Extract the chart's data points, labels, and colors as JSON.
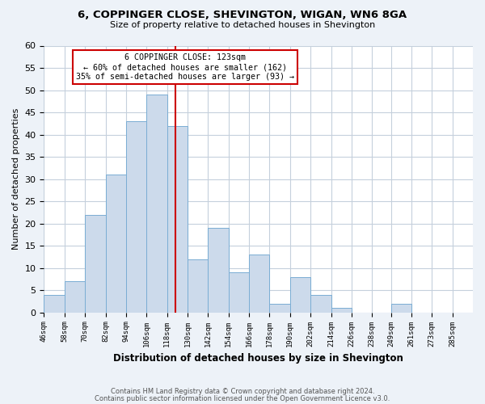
{
  "title": "6, COPPINGER CLOSE, SHEVINGTON, WIGAN, WN6 8GA",
  "subtitle": "Size of property relative to detached houses in Shevington",
  "xlabel": "Distribution of detached houses by size in Shevington",
  "ylabel": "Number of detached properties",
  "bin_labels": [
    "46sqm",
    "58sqm",
    "70sqm",
    "82sqm",
    "94sqm",
    "106sqm",
    "118sqm",
    "130sqm",
    "142sqm",
    "154sqm",
    "166sqm",
    "178sqm",
    "190sqm",
    "202sqm",
    "214sqm",
    "226sqm",
    "238sqm",
    "249sqm",
    "261sqm",
    "273sqm",
    "285sqm"
  ],
  "bin_edges": [
    46,
    58,
    70,
    82,
    94,
    106,
    118,
    130,
    142,
    154,
    166,
    178,
    190,
    202,
    214,
    226,
    238,
    249,
    261,
    273,
    285
  ],
  "bar_heights": [
    4,
    7,
    22,
    31,
    43,
    49,
    42,
    12,
    19,
    9,
    13,
    2,
    8,
    4,
    1,
    0,
    0,
    2,
    0,
    0,
    0
  ],
  "bar_color": "#ccdaeb",
  "bar_edge_color": "#7aadd4",
  "vline_x": 123,
  "vline_color": "#cc0000",
  "annotation_text": "6 COPPINGER CLOSE: 123sqm\n← 60% of detached houses are smaller (162)\n35% of semi-detached houses are larger (93) →",
  "annotation_box_color": "#ffffff",
  "annotation_box_edge_color": "#cc0000",
  "ylim": [
    0,
    60
  ],
  "yticks": [
    0,
    5,
    10,
    15,
    20,
    25,
    30,
    35,
    40,
    45,
    50,
    55,
    60
  ],
  "footer_line1": "Contains HM Land Registry data © Crown copyright and database right 2024.",
  "footer_line2": "Contains public sector information licensed under the Open Government Licence v3.0.",
  "bg_color": "#edf2f8",
  "plot_bg_color": "#ffffff",
  "grid_color": "#c5d0dc"
}
